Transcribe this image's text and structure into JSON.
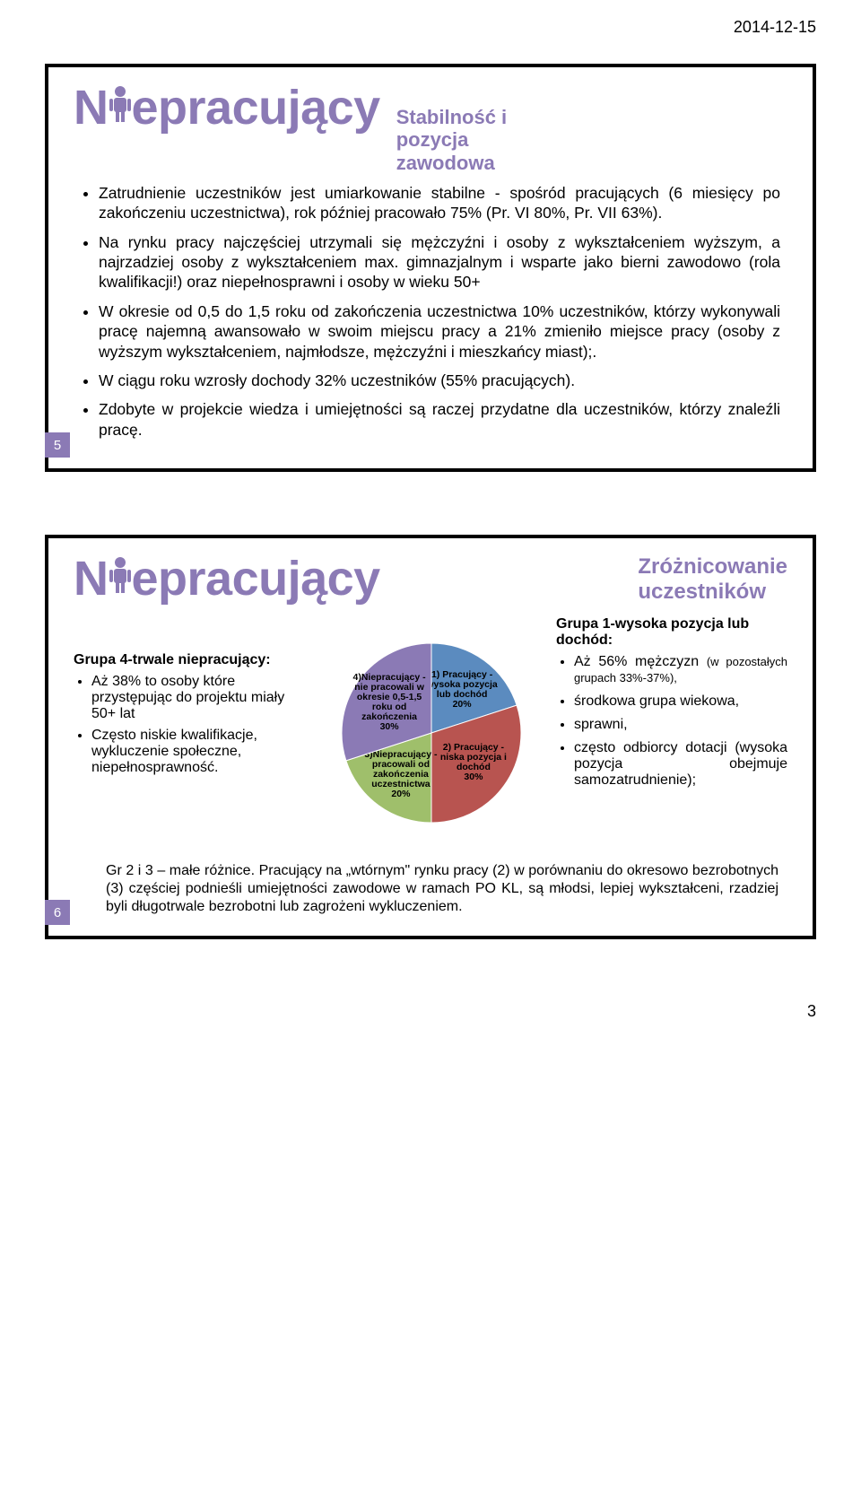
{
  "header_date": "2014-12-15",
  "page_number": "3",
  "logo_color": "#8b7ab5",
  "slide5": {
    "number": "5",
    "logo": "N epracujący",
    "subtitle_l1": "Stabilność i",
    "subtitle_l2": "pozycja",
    "subtitle_l3": "zawodowa",
    "b1": "Zatrudnienie uczestników jest umiarkowanie stabilne - spośród pracujących (6 miesięcy po zakończeniu uczestnictwa), rok później pracowało 75% (Pr. VI 80%, Pr. VII 63%).",
    "b2": "Na rynku pracy najczęściej utrzymali się mężczyźni i osoby z wykształceniem wyższym, a najrzadziej osoby z wykształceniem max. gimnazjalnym i wsparte jako bierni zawodowo (rola kwalifikacji!) oraz niepełnosprawni i osoby w wieku 50+",
    "b3": "W okresie od 0,5 do 1,5 roku od zakończenia uczestnictwa 10% uczestników, którzy wykonywali pracę najemną awansowało w swoim miejscu pracy a 21% zmieniło miejsce pracy (osoby z wyższym wykształceniem, najmłodsze, mężczyźni i mieszkańcy miast);.",
    "b4": "W ciągu roku wzrosły dochody 32% uczestników (55% pracujących).",
    "b5": "Zdobyte w projekcie wiedza i umiejętności są raczej przydatne dla uczestników, którzy znaleźli pracę."
  },
  "slide6": {
    "number": "6",
    "logo": "N epracujący",
    "subtitle_l1": "Zróżnicowanie",
    "subtitle_l2": "uczestników",
    "left_head": "Grupa 4-trwale niepracujący:",
    "left_b1": "Aż 38% to osoby które przystępując do projektu miały 50+ lat",
    "left_b2": "Często niskie kwalifikacje, wykluczenie społeczne, niepełnosprawność.",
    "right_head": "Grupa 1-wysoka pozycja lub dochód:",
    "right_b1a": "Aż 56% mężczyzn ",
    "right_b1b": "(w pozostałych grupach 33%-37%),",
    "right_b2": "środkowa grupa wiekowa,",
    "right_b3": "sprawni,",
    "right_b4": "często odbiorcy dotacji (wysoka pozycja obejmuje samozatrudnienie);",
    "bottom": "Gr 2 i 3 – małe różnice. Pracujący na „wtórnym\" rynku pracy (2) w porównaniu do okresowo bezrobotnych (3) częściej podnieśli umiejętności zawodowe w ramach PO KL, są młodsi, lepiej wykształceni, rzadziej byli długotrwale bezrobotni lub zagrożeni wykluczeniem.",
    "pie": {
      "type": "pie",
      "background_color": "#ffffff",
      "slices": [
        {
          "label_l1": "1) Pracujący -",
          "label_l2": "wysoka pozycja",
          "label_l3": "lub dochód",
          "label_l4": "20%",
          "value": 20,
          "color": "#5b8bbf"
        },
        {
          "label_l1": "2) Pracujący -",
          "label_l2": "niska pozycja i",
          "label_l3": "dochód",
          "label_l4": "30%",
          "value": 30,
          "color": "#b85450"
        },
        {
          "label_l1": "3)Niepracujący -",
          "label_l2": "pracowali od",
          "label_l3": "zakończenia",
          "label_l4": "uczestnictwa",
          "label_l5": "20%",
          "value": 20,
          "color": "#9fbf6b"
        },
        {
          "label_l1": "4)Niepracujący -",
          "label_l2": "nie pracowali w",
          "label_l3": "okresie 0,5-1,5",
          "label_l4": "roku od",
          "label_l5": "zakończenia",
          "label_l6": "30%",
          "value": 30,
          "color": "#8b7ab5"
        }
      ]
    }
  }
}
